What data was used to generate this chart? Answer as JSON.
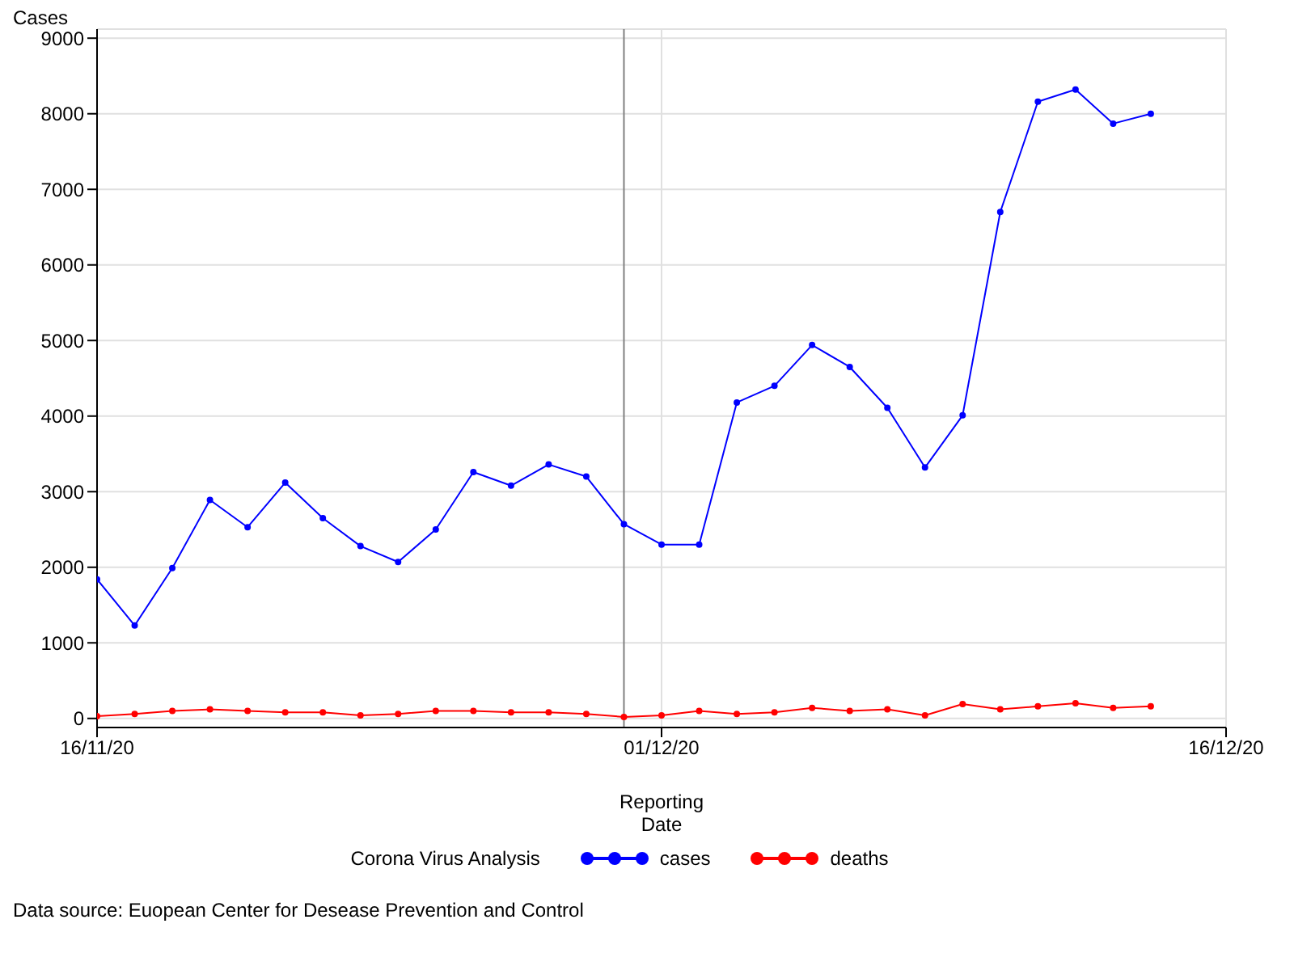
{
  "chart_data": {
    "type": "line",
    "xlabel": "Reporting Date",
    "ylabel": "Cases",
    "legend_title": "Corona Virus Analysis",
    "x": [
      "2020-11-16",
      "2020-11-17",
      "2020-11-18",
      "2020-11-19",
      "2020-11-20",
      "2020-11-21",
      "2020-11-22",
      "2020-11-23",
      "2020-11-24",
      "2020-11-25",
      "2020-11-26",
      "2020-11-27",
      "2020-11-28",
      "2020-11-29",
      "2020-11-30",
      "2020-12-01",
      "2020-12-02",
      "2020-12-03",
      "2020-12-04",
      "2020-12-05",
      "2020-12-06",
      "2020-12-07",
      "2020-12-08",
      "2020-12-09",
      "2020-12-10",
      "2020-12-11",
      "2020-12-12",
      "2020-12-13",
      "2020-12-14"
    ],
    "series": [
      {
        "name": "cases",
        "color": "#0000ff",
        "values": [
          1840,
          1230,
          1990,
          2890,
          2530,
          3120,
          2650,
          2280,
          2070,
          2500,
          3260,
          3080,
          3360,
          3200,
          2570,
          2300,
          2300,
          4180,
          4400,
          4940,
          4650,
          4110,
          3320,
          4010,
          6700,
          8160,
          8320,
          7870,
          8000
        ]
      },
      {
        "name": "deaths",
        "color": "#ff0000",
        "values": [
          30,
          60,
          100,
          120,
          100,
          80,
          80,
          40,
          60,
          100,
          100,
          80,
          80,
          60,
          20,
          40,
          100,
          60,
          80,
          140,
          100,
          120,
          40,
          190,
          120,
          160,
          200,
          140,
          160
        ]
      }
    ],
    "xlim": [
      "2020-11-16",
      "2020-12-16"
    ],
    "xticks": [
      {
        "value": "2020-11-16",
        "label": "16/11/20"
      },
      {
        "value": "2020-12-01",
        "label": "01/12/20"
      },
      {
        "value": "2020-12-16",
        "label": "16/12/20"
      }
    ],
    "ylim": [
      -120,
      9120
    ],
    "yticks": [
      0,
      1000,
      2000,
      3000,
      4000,
      5000,
      6000,
      7000,
      8000,
      9000
    ],
    "ref_lines": [
      {
        "axis": "x",
        "value": "2020-11-30",
        "color": "#808080"
      }
    ],
    "grid": true,
    "legend": "bottom",
    "marker": "circle",
    "line_style": "solid",
    "annotations": [
      "Data source: Euopean Center for Desease Prevention and Control"
    ]
  }
}
